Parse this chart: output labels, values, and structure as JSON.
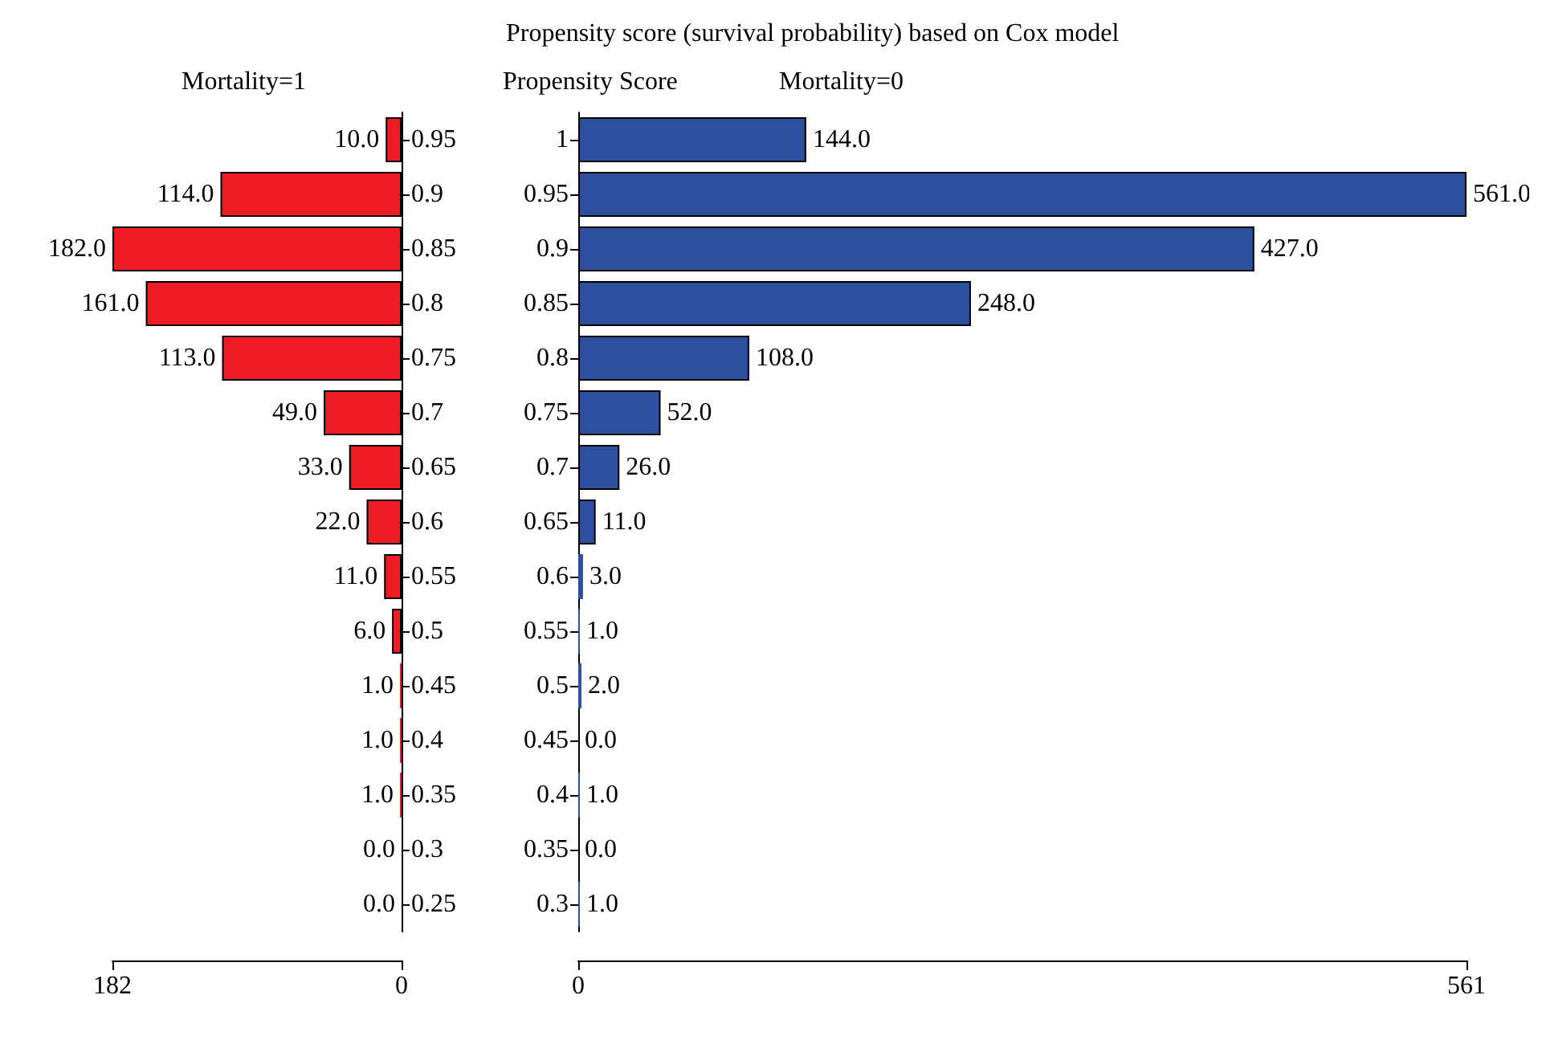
{
  "chart_data": [
    {
      "type": "bar",
      "orientation": "horizontal",
      "title": "Mortality=1",
      "categories": [
        "0.95",
        "0.9",
        "0.85",
        "0.8",
        "0.75",
        "0.7",
        "0.65",
        "0.6",
        "0.55",
        "0.5",
        "0.45",
        "0.4",
        "0.35",
        "0.3",
        "0.25"
      ],
      "series": [
        {
          "color": "#ed1c24",
          "values": [
            10,
            114,
            182,
            161,
            113,
            49,
            33,
            22,
            11,
            6,
            1,
            1,
            1,
            0,
            0
          ],
          "value_labels": [
            "10.0",
            "114.0",
            "182.0",
            "161.0",
            "113.0",
            "49.0",
            "33.0",
            "22.0",
            "11.0",
            "6.0",
            "1.0",
            "1.0",
            "1.0",
            "0.0",
            "0.0"
          ]
        }
      ],
      "xlim": [
        182,
        0
      ],
      "xticks": [
        182,
        0
      ],
      "grid": false
    },
    {
      "type": "bar",
      "orientation": "horizontal",
      "title": "Propensity score (survival probability) based on Cox model",
      "subtitle": "Mortality=0",
      "ylabel": "Propensity Score",
      "categories": [
        "1",
        "0.95",
        "0.9",
        "0.85",
        "0.8",
        "0.75",
        "0.7",
        "0.65",
        "0.6",
        "0.55",
        "0.5",
        "0.45",
        "0.4",
        "0.35",
        "0.3"
      ],
      "series": [
        {
          "color": "#2e4f9e",
          "values": [
            144,
            561,
            427,
            248,
            108,
            52,
            26,
            11,
            3,
            1,
            2,
            0,
            1,
            0,
            1
          ],
          "value_labels": [
            "144.0",
            "561.0",
            "427.0",
            "248.0",
            "108.0",
            "52.0",
            "26.0",
            "11.0",
            "3.0",
            "1.0",
            "2.0",
            "0.0",
            "1.0",
            "0.0",
            "1.0"
          ]
        }
      ],
      "xlim": [
        0,
        561
      ],
      "xticks": [
        0,
        561
      ],
      "grid": false
    }
  ]
}
